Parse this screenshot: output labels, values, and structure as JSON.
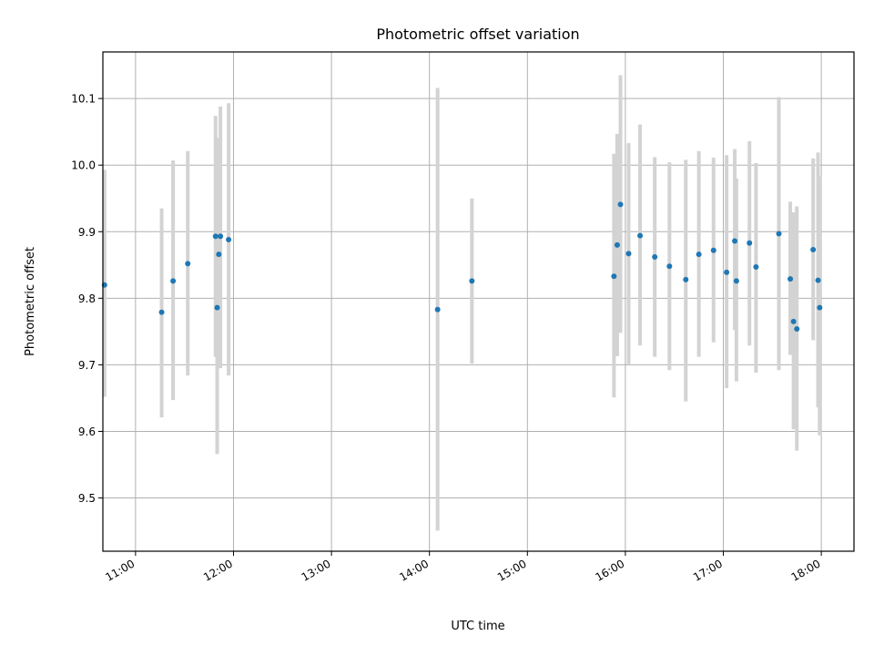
{
  "chart_data": {
    "type": "scatter",
    "title": "Photometric offset variation",
    "xlabel": "UTC time",
    "ylabel": "Photometric offset",
    "x_unit": "UTC hour",
    "xlim": [
      "10:40",
      "18:20"
    ],
    "ylim": [
      9.42,
      10.17
    ],
    "x_ticks": [
      "11:00",
      "12:00",
      "13:00",
      "14:00",
      "15:00",
      "16:00",
      "17:00",
      "18:00"
    ],
    "y_ticks": [
      "9.5",
      "9.6",
      "9.7",
      "9.8",
      "9.9",
      "10.0",
      "10.1"
    ],
    "grid": true,
    "marker_color": "#1f77b4",
    "errorbar_color": "#d3d3d3",
    "points": [
      {
        "x": "10:41",
        "y": 9.82,
        "ylow": 9.652,
        "yhigh": 9.993
      },
      {
        "x": "11:16",
        "y": 9.779,
        "ylow": 9.621,
        "yhigh": 9.935
      },
      {
        "x": "11:23",
        "y": 9.826,
        "ylow": 9.647,
        "yhigh": 10.007
      },
      {
        "x": "11:32",
        "y": 9.852,
        "ylow": 9.684,
        "yhigh": 10.021
      },
      {
        "x": "11:49",
        "y": 9.893,
        "ylow": 9.712,
        "yhigh": 10.074
      },
      {
        "x": "11:50",
        "y": 9.786,
        "ylow": 9.566,
        "yhigh": 10.041
      },
      {
        "x": "11:51",
        "y": 9.866,
        "ylow": 9.734,
        "yhigh": 10.001
      },
      {
        "x": "11:52",
        "y": 9.893,
        "ylow": 9.695,
        "yhigh": 10.088
      },
      {
        "x": "11:57",
        "y": 9.888,
        "ylow": 9.684,
        "yhigh": 10.093
      },
      {
        "x": "14:05",
        "y": 9.783,
        "ylow": 9.451,
        "yhigh": 10.116
      },
      {
        "x": "14:26",
        "y": 9.826,
        "ylow": 9.702,
        "yhigh": 9.95
      },
      {
        "x": "15:53",
        "y": 9.833,
        "ylow": 9.651,
        "yhigh": 10.017
      },
      {
        "x": "15:55",
        "y": 9.88,
        "ylow": 9.713,
        "yhigh": 10.047
      },
      {
        "x": "15:57",
        "y": 9.941,
        "ylow": 9.748,
        "yhigh": 10.135
      },
      {
        "x": "16:02",
        "y": 9.867,
        "ylow": 9.701,
        "yhigh": 10.033
      },
      {
        "x": "16:09",
        "y": 9.894,
        "ylow": 9.729,
        "yhigh": 10.061
      },
      {
        "x": "16:18",
        "y": 9.862,
        "ylow": 9.712,
        "yhigh": 10.012
      },
      {
        "x": "16:27",
        "y": 9.848,
        "ylow": 9.692,
        "yhigh": 10.004
      },
      {
        "x": "16:37",
        "y": 9.828,
        "ylow": 9.645,
        "yhigh": 10.008
      },
      {
        "x": "16:45",
        "y": 9.866,
        "ylow": 9.712,
        "yhigh": 10.021
      },
      {
        "x": "16:54",
        "y": 9.872,
        "ylow": 9.734,
        "yhigh": 10.011
      },
      {
        "x": "17:02",
        "y": 9.839,
        "ylow": 9.665,
        "yhigh": 10.015
      },
      {
        "x": "17:07",
        "y": 9.886,
        "ylow": 9.752,
        "yhigh": 10.024
      },
      {
        "x": "17:08",
        "y": 9.826,
        "ylow": 9.675,
        "yhigh": 9.98
      },
      {
        "x": "17:16",
        "y": 9.883,
        "ylow": 9.729,
        "yhigh": 10.036
      },
      {
        "x": "17:20",
        "y": 9.847,
        "ylow": 9.688,
        "yhigh": 10.003
      },
      {
        "x": "17:34",
        "y": 9.897,
        "ylow": 9.692,
        "yhigh": 10.102
      },
      {
        "x": "17:41",
        "y": 9.829,
        "ylow": 9.715,
        "yhigh": 9.945
      },
      {
        "x": "17:43",
        "y": 9.765,
        "ylow": 9.603,
        "yhigh": 9.929
      },
      {
        "x": "17:45",
        "y": 9.754,
        "ylow": 9.571,
        "yhigh": 9.938
      },
      {
        "x": "17:55",
        "y": 9.873,
        "ylow": 9.737,
        "yhigh": 10.01
      },
      {
        "x": "17:58",
        "y": 9.827,
        "ylow": 9.636,
        "yhigh": 10.019
      },
      {
        "x": "17:59",
        "y": 9.786,
        "ylow": 9.594,
        "yhigh": 9.983
      }
    ]
  }
}
